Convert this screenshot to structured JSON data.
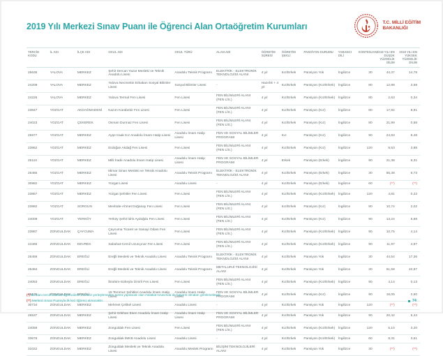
{
  "page": {
    "title": "2019 Yılı Merkezi Sınav Puanı ile Öğrenci Alan Ortaöğretim Kurumları",
    "page_number": "74"
  },
  "logo": {
    "icon": "meb-crest-icon",
    "line1": "T.C. MİLLİ EĞİTİM",
    "line2": "BAKANLIĞI"
  },
  "colors": {
    "accent_teal": "#2ba6a6",
    "brand_red": "#c0392b",
    "footnote_red": "#d9534f",
    "row_line": "#e0ecec",
    "body_text": "#5f6b6b",
    "header_text": "#8a9595"
  },
  "table": {
    "headers": [
      "TERCİH KODU",
      "İL ADI",
      "İLÇE ADI",
      "OKUL ADI",
      "OKUL TÜRÜ",
      "ALAN ADI",
      "ÖĞRETİM SÜRESİ",
      "ÖĞRETİM ŞEKLİ",
      "PANSİYON DURUMU",
      "YABANCI DİLİ",
      "KONTENJAN",
      "2018 YILI EN DÜŞÜK YÜZDELİK DİLİM",
      "2018 YILI EN YÜKSEK YÜZDELİK DİLİM"
    ],
    "rows": [
      [
        "25635",
        "YALOVA",
        "MERKEZ",
        "Şehit Dercan Yazar Mesleki ve Teknik Anadolu Lisesi",
        "Anadolu Teknik Programı",
        "ELEKTRİK - ELEKTRONİK TEKNOLOJİSİ ALANI",
        "4 yıl",
        "Kız/Erkek",
        "Pansiyon Yok",
        "İngilizce",
        "30",
        "44,37",
        "14,78"
      ],
      [
        "24208",
        "YALOVA",
        "MERKEZ",
        "Yalova Necmettin Erbakan Sosyal Bilimler Lisesi",
        "Sosyal Bilimler Lisesi",
        "-",
        "Hazırlık + 4 yıl",
        "Kız/Erkek",
        "Pansiyon (Kız/Erkek)",
        "İngilizce",
        "80",
        "12,88",
        "3,58"
      ],
      [
        "24225",
        "YALOVA",
        "MERKEZ",
        "Yalova Termal Fen Lisesi",
        "Fen Lisesi",
        "FEN BİLİMLERİ ALANI (FEN LİS.)",
        "4 yıl",
        "Kız/Erkek",
        "Pansiyon (Kız/Erkek)",
        "İngilizce",
        "80",
        "2,63",
        "0,34"
      ],
      [
        "23847",
        "YOZGAT",
        "AKDAĞMADENİ",
        "Kazım Karabekir Fen Lisesi",
        "Fen Lisesi",
        "FEN BİLİMLERİ ALANI (FEN LİS.)",
        "4 yıl",
        "Kız/Erkek",
        "Pansiyon (Kız)",
        "İngilizce",
        "80",
        "17,82",
        "8,91"
      ],
      [
        "24023",
        "YOZGAT",
        "ÇEKEREK",
        "Osman Durmaz Fen Lisesi",
        "Fen Lisesi",
        "FEN BİLİMLERİ ALANI (FEN LİS.)",
        "4 yıl",
        "Kız/Erkek",
        "Pansiyon (Kız)",
        "İngilizce",
        "80",
        "21,99",
        "0,58"
      ],
      [
        "25977",
        "YOZGAT",
        "MERKEZ",
        "Ayşe Iraak Kız Anadolu İmam Hatip Lisesi",
        "Anadolu İmam Hatip Lisesi",
        "FEN VE SOSYAL BİLİMLER PROGRAMI",
        "4 yıl",
        "Kız",
        "Pansiyon (Kız)",
        "İngilizce",
        "90",
        "24,83",
        "8,48"
      ],
      [
        "23862",
        "YOZGAT",
        "MERKEZ",
        "Erdoğan Akdağ Fen Lisesi",
        "Fen Lisesi",
        "FEN BİLİMLERİ ALANI (FEN LİS.)",
        "4 yıl",
        "Kız/Erkek",
        "Pansiyon (Kız)",
        "İngilizce",
        "120",
        "9,53",
        "3,88"
      ],
      [
        "25110",
        "YOZGAT",
        "MERKEZ",
        "Milli İrade Anadolu İmam Hatip Lisesi",
        "Anadolu İmam Hatip Lisesi",
        "FEN VE SOSYAL BİLİMLER PROGRAMI",
        "4 yıl",
        "Erkek",
        "Pansiyon (Erkek)",
        "İngilizce",
        "90",
        "21,38",
        "6,31"
      ],
      [
        "25465",
        "YOZGAT",
        "MERKEZ",
        "Mimar Sinan Mesleki ve Teknik Anadolu Lisesi",
        "Anadolu Teknik Programı",
        "ELEKTRİK - ELEKTRONİK TEKNOLOJİSİ ALANI",
        "4 yıl",
        "Kız/Erkek",
        "Pansiyon (Erkek)",
        "İngilizce",
        "30",
        "55,38",
        "6,73"
      ],
      [
        "30982",
        "YOZGAT",
        "MERKEZ",
        "Yozgat Lisesi",
        "Anadolu Lisesi",
        "-",
        "4 yıl",
        "Kız/Erkek",
        "Pansiyon (Erkek)",
        "İngilizce",
        "60",
        "(**)",
        "(**)"
      ],
      [
        "23867",
        "YOZGAT",
        "MERKEZ",
        "Yozgat Şehitler Fen Lisesi",
        "Fen Lisesi",
        "FEN BİLİMLERİ ALANI (FEN LİS.)",
        "4 yıl",
        "Kız/Erkek",
        "Pansiyon (Kız/Erkek)",
        "İngilizce",
        "120",
        "4,81",
        "0,22"
      ],
      [
        "23882",
        "YOZGAT",
        "SORGUN",
        "Mevlüde-Ahmet Doğanay Fen Lisesi",
        "Fen Lisesi",
        "FEN BİLİMLERİ ALANI (FEN LİS.)",
        "4 yıl",
        "Kız/Erkek",
        "Pansiyon (Kız)",
        "İngilizce",
        "90",
        "10,74",
        "2,02"
      ],
      [
        "24008",
        "YOZGAT",
        "YERKÖY",
        "Yerköy Şehit İdris Aydoğdu Fen Lisesi",
        "Fen Lisesi",
        "FEN BİLİMLERİ ALANI (FEN LİS.)",
        "4 yıl",
        "Kız/Erkek",
        "Pansiyon (Kız)",
        "İngilizce",
        "90",
        "13,24",
        "5,68"
      ],
      [
        "23887",
        "ZONGULDAK",
        "ÇAYCUMA",
        "Çaycuma Ticaret ve Sanayi Odası Fen Lisesi",
        "Fen Lisesi",
        "FEN BİLİMLERİ ALANI (FEN LİS.)",
        "4 yıl",
        "Kız/Erkek",
        "Pansiyon (Kız/Erkek)",
        "İngilizce",
        "90",
        "10,75",
        "4,14"
      ],
      [
        "24465",
        "ZONGULDAK",
        "DEVREK",
        "Sabahat-Cemil Uzunçınar Fen Lisesi",
        "Fen Lisesi",
        "FEN BİLİMLERİ ALANI (FEN LİS.)",
        "4 yıl",
        "Kız/Erkek",
        "Pansiyon (Kız/Erkek)",
        "İngilizce",
        "90",
        "11,97",
        "4,97"
      ],
      [
        "25459",
        "ZONGULDAK",
        "EREĞLİ",
        "Ereğli Mesleki ve Teknik Anadolu Lisesi",
        "Anadolu Teknik Programı",
        "ELEKTRİK - ELEKTRONİK TEKNOLOJİSİ ALANI",
        "4 yıl",
        "Kız/Erkek",
        "Pansiyon Yok",
        "İngilizce",
        "30",
        "44,54",
        "17,36"
      ],
      [
        "25494",
        "ZONGULDAK",
        "EREĞLİ",
        "Ereğli Mesleki ve Teknik Anadolu Lisesi",
        "Anadolu Teknik Programı",
        "METALURJİ TEKNOLOJİSİ ALANI",
        "4 yıl",
        "Kız/Erkek",
        "Pansiyon Yok",
        "İngilizce",
        "30",
        "61,58",
        "22,87"
      ],
      [
        "24053",
        "ZONGULDAK",
        "EREĞLİ",
        "İbrahim-Süheyla İzmirli Fen Lisesi",
        "Fen Lisesi",
        "FEN BİLİMLERİ ALANI (FEN LİS.)",
        "4 yıl",
        "Kız/Erkek",
        "Pansiyon (Kız/Erkek)",
        "İngilizce",
        "90",
        "4,14",
        "0,13"
      ],
      [
        "25105",
        "ZONGULDAK",
        "EREĞLİ",
        "15 Temmuz Şehitleri Anadolu İmam Hatip Lisesi",
        "Anadolu İmam Hatip Lisesi",
        "FEN VE SOSYAL BİLİMLER PROGRAMI",
        "4 yıl",
        "Kız/Erkek",
        "Pansiyon (Kız)",
        "İngilizce",
        "90",
        "18,05",
        "2,50"
      ],
      [
        "30734",
        "ZONGULDAK",
        "MERKEZ",
        "Mehmet Çelikel Lisesi",
        "Anadolu Lisesi",
        "-",
        "4 yıl",
        "Kız/Erkek",
        "Pansiyon Yok",
        "İngilizce",
        "120",
        "(**)",
        "(**)"
      ],
      [
        "26537",
        "ZONGULDAK",
        "MERKEZ",
        "Şehit Gökhan Esen Anadolu İmam Hatip Lisesi",
        "Anadolu İmam Hatip Lisesi",
        "FEN VE SOSYAL BİLİMLER PROGRAMI",
        "4 yıl",
        "Kız/Erkek",
        "Pansiyon Yok",
        "İngilizce",
        "90",
        "20,42",
        "5,44"
      ],
      [
        "24059",
        "ZONGULDAK",
        "MERKEZ",
        "Zonguldak Fen Lisesi",
        "Fen Lisesi",
        "FEN BİLİMLERİ ALANI (FEN LİS.)",
        "4 yıl",
        "Kız/Erkek",
        "Pansiyon (Kız/Erkek)",
        "İngilizce",
        "120",
        "5,10",
        "3,20"
      ],
      [
        "33678",
        "ZONGULDAK",
        "MERKEZ",
        "Zonguldak İMKB Anadolu Lisesi",
        "Anadolu Lisesi",
        "-",
        "4 yıl",
        "Kız/Erkek",
        "Pansiyon (Kız/Erkek)",
        "İngilizce",
        "60",
        "8,31",
        "3,61"
      ],
      [
        "31022",
        "ZONGULDAK",
        "MERKEZ",
        "Zonguldak Mesleki ve Teknik Anadolu Lisesi",
        "Anadolu Meslek Programı",
        "BİLİŞİM TEKNOLOJİLERİ ALANI",
        "4 yıl",
        "Kız/Erkek",
        "Pansiyon Yok",
        "İngilizce",
        "30",
        "(**)",
        "(**)"
      ]
    ]
  },
  "footnotes": [
    {
      "marker": "(*)",
      "text": "Bu alanı tercih edecek öğrencilerin merkezi yerleştirmeden sonra yapılacak olan mülakat sınavında da başarılı olmaları gerekmektedir."
    },
    {
      "marker": "(**)",
      "text": "Merkezi Sınav Puanıyla ilk kez öğrenci alınacaktır."
    }
  ]
}
